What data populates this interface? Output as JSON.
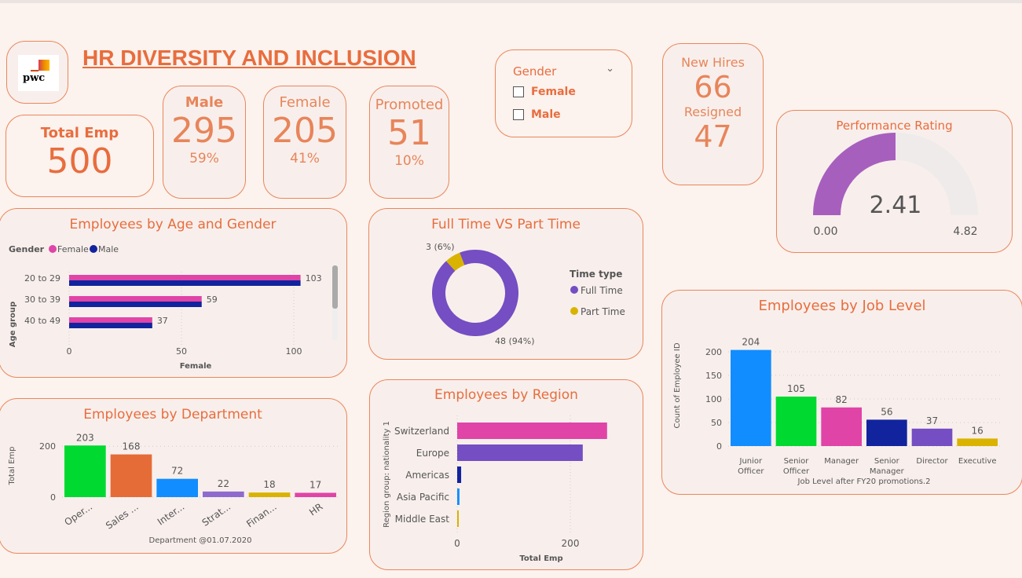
{
  "header": {
    "title": "HR DIVERSITY AND INCLUSION",
    "logo_text": "pwc"
  },
  "kpis": {
    "total_label": "Total Emp",
    "total_value": "500",
    "male_label": "Male",
    "male_value": "295",
    "male_pct": "59%",
    "female_label": "Female",
    "female_value": "205",
    "female_pct": "41%",
    "promoted_label": "Promoted",
    "promoted_value": "51",
    "promoted_pct": "10%",
    "new_hires_label": "New Hires",
    "new_hires_value": "66",
    "resigned_label": "Resigned",
    "resigned_value": "47"
  },
  "slicer": {
    "title": "Gender",
    "options": [
      "Female",
      "Male"
    ]
  },
  "gauge": {
    "title": "Performance Rating",
    "value": 2.41,
    "value_text": "2.41",
    "min_text": "0.00",
    "max_text": "4.82",
    "fill_color": "#a75fbd"
  },
  "chart_data": [
    {
      "type": "bar",
      "orientation": "horizontal",
      "title": "Employees by Age and Gender",
      "legend_title": "Gender",
      "legend": "top-left",
      "categories": [
        "20 to 29",
        "30 to 39",
        "40 to 49"
      ],
      "series": [
        {
          "name": "Female",
          "color": "#e044a7",
          "values": [
            103,
            59,
            37
          ]
        },
        {
          "name": "Male",
          "color": "#12239e",
          "values": [
            103,
            59,
            37
          ]
        }
      ],
      "data_labels": [
        "103",
        "59",
        "37"
      ],
      "xlabel": "Female",
      "ylabel": "Age group",
      "xlim": [
        0,
        105
      ],
      "xticks": [
        "0",
        "50",
        "100"
      ]
    },
    {
      "type": "pie",
      "donut": true,
      "title": "Full Time VS Part Time",
      "legend_title": "Time type",
      "legend": "right",
      "categories": [
        "Full Time",
        "Part Time"
      ],
      "values": [
        48,
        3
      ],
      "labels": [
        "48 (94%)",
        "3 (6%)"
      ],
      "colors": [
        "#744ec2",
        "#d9b300"
      ]
    },
    {
      "type": "bar",
      "title": "Employees by Department",
      "categories": [
        "Oper...",
        "Sales ...",
        "Inter...",
        "Strat...",
        "Finan...",
        "HR"
      ],
      "values": [
        203,
        168,
        72,
        22,
        18,
        17
      ],
      "colors": [
        "#00d930",
        "#e66c37",
        "#118dff",
        "#8f6ace",
        "#d9b300",
        "#e044a7"
      ],
      "xlabel": "Department @01.07.2020",
      "ylabel": "Total Emp",
      "ylim": [
        0,
        210
      ],
      "yticks": [
        "0",
        "200"
      ]
    },
    {
      "type": "bar",
      "orientation": "horizontal",
      "title": "Employees by Region",
      "categories": [
        "Switzerland",
        "Europe",
        "Americas",
        "Asia Pacific",
        "Middle East"
      ],
      "values": [
        265,
        222,
        7,
        4,
        2
      ],
      "colors": [
        "#e044a7",
        "#744ec2",
        "#12239e",
        "#118dff",
        "#d9b300"
      ],
      "xlabel": "Total Emp",
      "ylabel": "Region group: nationality 1",
      "xlim": [
        0,
        280
      ],
      "xticks": [
        "0",
        "200"
      ]
    },
    {
      "type": "bar",
      "title": "Employees by Job Level",
      "categories": [
        "Junior Officer",
        "Senior Officer",
        "Manager",
        "Senior Manager",
        "Director",
        "Executive"
      ],
      "values": [
        204,
        105,
        82,
        56,
        37,
        16
      ],
      "colors": [
        "#118dff",
        "#00d930",
        "#e044a7",
        "#12239e",
        "#744ec2",
        "#d9b300"
      ],
      "xlabel": "Job Level after FY20 promotions.2",
      "ylabel": "Count of Employee ID",
      "ylim": [
        0,
        210
      ],
      "yticks": [
        "0",
        "50",
        "100",
        "150",
        "200"
      ]
    }
  ]
}
